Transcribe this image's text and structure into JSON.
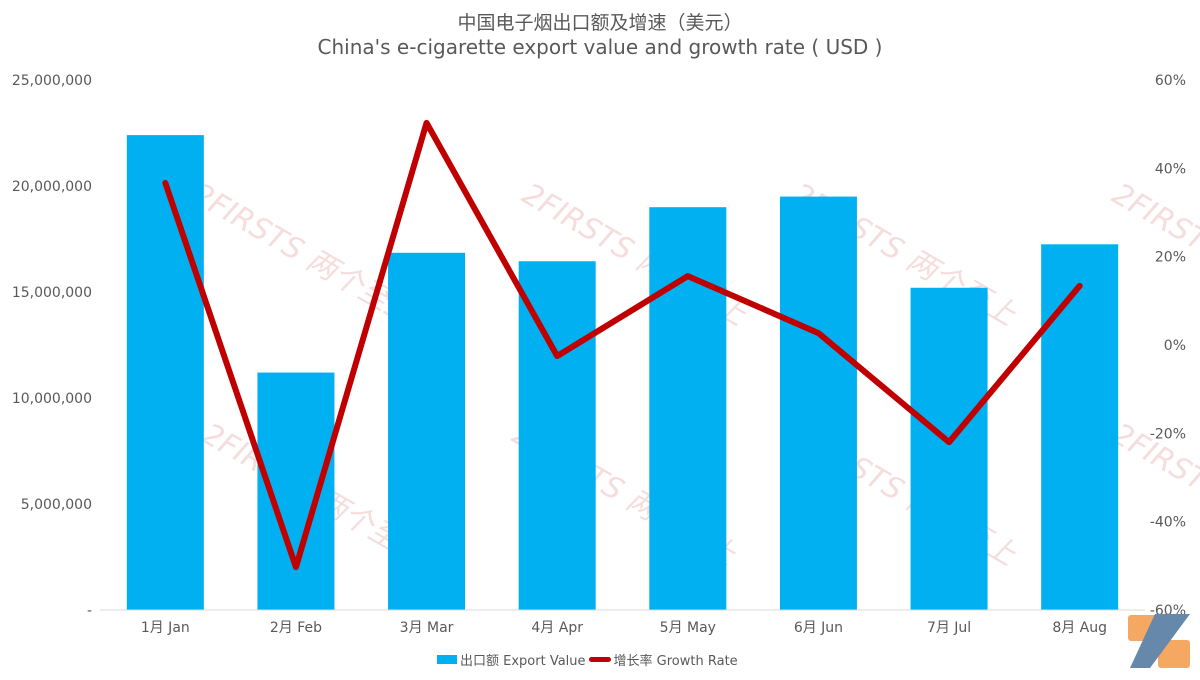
{
  "chart_data": {
    "type": "bar+line",
    "title": "中国电子烟出口额及增速（美元）",
    "subtitle": "China's e-cigarette export value and growth rate ( USD )",
    "categories": [
      "1月 Jan",
      "2月 Feb",
      "3月 Mar",
      "4月 Apr",
      "5月 May",
      "6月 Jun",
      "7月 Jul",
      "8月 Aug"
    ],
    "series": [
      {
        "name": "出口额 Export Value",
        "type": "bar",
        "axis": "left",
        "color": "#00b0f0",
        "values": [
          22400000,
          11200000,
          16850000,
          16450000,
          19000000,
          19500000,
          15200000,
          17250000
        ]
      },
      {
        "name": "增长率 Growth Rate",
        "type": "line",
        "axis": "right",
        "color": "#c00000",
        "values": [
          36.7,
          -50.3,
          50.3,
          -2.5,
          15.6,
          2.7,
          -22.0,
          13.4
        ]
      }
    ],
    "left_axis": {
      "ylim": [
        0,
        25000000
      ],
      "ticks": [
        0,
        5000000,
        10000000,
        15000000,
        20000000,
        25000000
      ],
      "tick_labels": [
        "-",
        "5,000,000",
        "10,000,000",
        "15,000,000",
        "20,000,000",
        "25,000,000"
      ]
    },
    "right_axis": {
      "ylim": [
        -60,
        60
      ],
      "ticks": [
        -60,
        -40,
        -20,
        0,
        20,
        40,
        60
      ],
      "tick_labels": [
        "-60%",
        "-40%",
        "-20%",
        "0%",
        "20%",
        "40%",
        "60%"
      ]
    },
    "legend_position": "bottom",
    "grid": false
  },
  "watermark": "2FIRSTS 两个至上"
}
